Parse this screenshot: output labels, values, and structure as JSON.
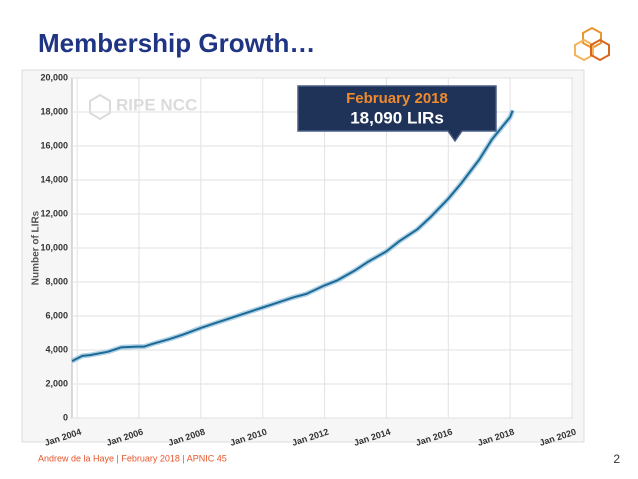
{
  "slide_title": "Membership Growth…",
  "footer": "Andrew de la Haye | February 2018 | APNIC 45",
  "page_number": "2",
  "chart_data": {
    "type": "line",
    "watermark": "RIPE NCC",
    "ylabel": "Number of LIRs",
    "annotation": {
      "line1": "February 2018",
      "line2": "18,090 LIRs"
    },
    "color": "#1b6a96",
    "grid": true,
    "x": [
      "2003-11",
      "2004-03",
      "2004-06",
      "2005-01",
      "2005-06",
      "2005-12",
      "2006-03",
      "2006-06",
      "2007-01",
      "2007-06",
      "2008-01",
      "2008-06",
      "2009-01",
      "2009-06",
      "2010-01",
      "2010-06",
      "2011-01",
      "2011-06",
      "2012-01",
      "2012-06",
      "2013-01",
      "2013-06",
      "2014-01",
      "2014-06",
      "2015-01",
      "2015-06",
      "2016-01",
      "2016-06",
      "2017-01",
      "2017-06",
      "2018-01",
      "2018-02"
    ],
    "values": [
      3350,
      3650,
      3700,
      3900,
      4150,
      4200,
      4200,
      4350,
      4650,
      4900,
      5300,
      5550,
      5900,
      6150,
      6500,
      6750,
      7100,
      7300,
      7800,
      8100,
      8700,
      9200,
      9800,
      10400,
      11100,
      11800,
      12900,
      13800,
      15200,
      16400,
      17700,
      18090
    ],
    "xlim": [
      "2003-11",
      "2020-01"
    ],
    "xticks": [
      {
        "value": "2004-01",
        "label": "Jan 2004"
      },
      {
        "value": "2006-01",
        "label": "Jan 2006"
      },
      {
        "value": "2008-01",
        "label": "Jan 2008"
      },
      {
        "value": "2010-01",
        "label": "Jan 2010"
      },
      {
        "value": "2012-01",
        "label": "Jan 2012"
      },
      {
        "value": "2014-01",
        "label": "Jan 2014"
      },
      {
        "value": "2016-01",
        "label": "Jan 2016"
      },
      {
        "value": "2018-01",
        "label": "Jan 2018"
      },
      {
        "value": "2020-01",
        "label": "Jan 2020"
      }
    ],
    "ylim": [
      0,
      20000
    ],
    "yticks": [
      0,
      {
        "value": 2000,
        "label": "2,000"
      },
      {
        "value": 4000,
        "label": "4,000"
      },
      {
        "value": 6000,
        "label": "6,000"
      },
      {
        "value": 8000,
        "label": "8,000"
      },
      {
        "value": 10000,
        "label": "10,000"
      },
      {
        "value": 12000,
        "label": "12,000"
      },
      {
        "value": 14000,
        "label": "14,000"
      },
      {
        "value": 16000,
        "label": "16,000"
      },
      {
        "value": 18000,
        "label": "18,000"
      },
      {
        "value": 20000,
        "label": "20,000"
      }
    ]
  }
}
